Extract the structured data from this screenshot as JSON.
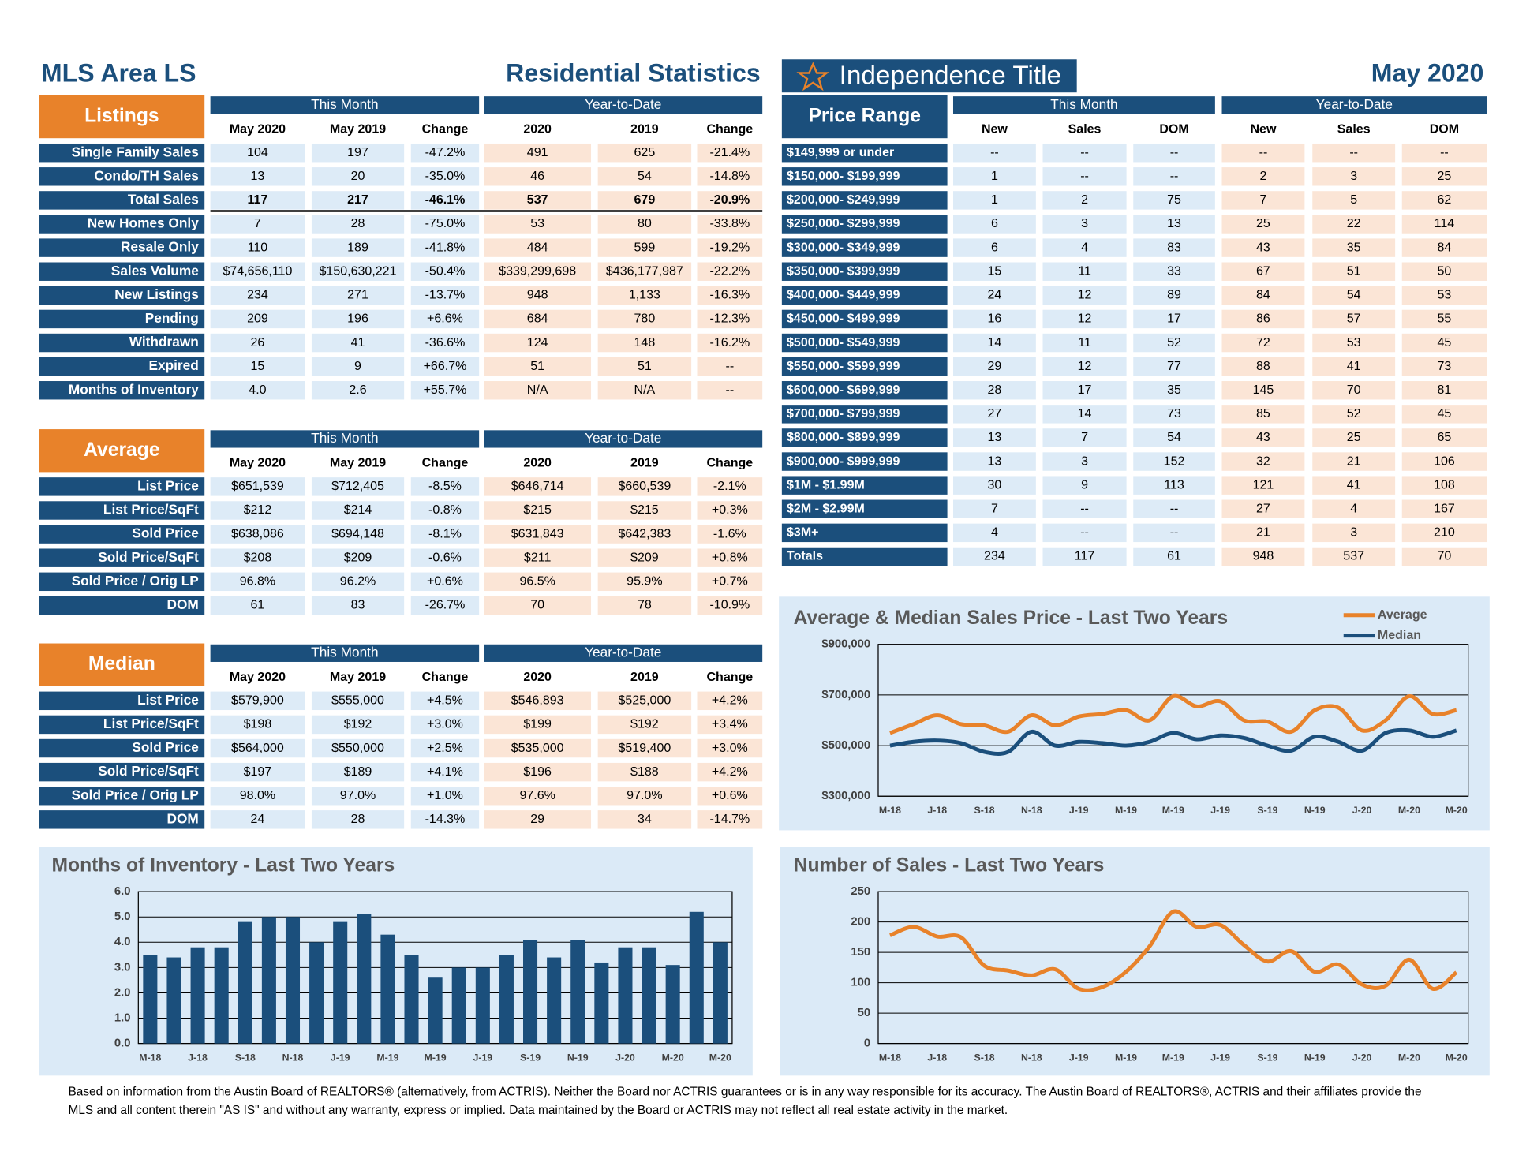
{
  "header": {
    "area": "MLS Area LS",
    "title": "Residential Statistics",
    "logo": "Independence Title",
    "month": "May 2020"
  },
  "listings": {
    "label": "Listings",
    "groups": [
      "This Month",
      "Year-to-Date"
    ],
    "columns": [
      "May 2020",
      "May 2019",
      "Change",
      "2020",
      "2019",
      "Change"
    ],
    "rows": [
      {
        "label": "Single Family Sales",
        "cells": [
          "104",
          "197",
          "-47.2%",
          "491",
          "625",
          "-21.4%"
        ]
      },
      {
        "label": "Condo/TH Sales",
        "cells": [
          "13",
          "20",
          "-35.0%",
          "46",
          "54",
          "-14.8%"
        ]
      },
      {
        "label": "Total Sales",
        "cells": [
          "117",
          "217",
          "-46.1%",
          "537",
          "679",
          "-20.9%"
        ]
      },
      {
        "label": "New Homes Only",
        "cells": [
          "7",
          "28",
          "-75.0%",
          "53",
          "80",
          "-33.8%"
        ]
      },
      {
        "label": "Resale Only",
        "cells": [
          "110",
          "189",
          "-41.8%",
          "484",
          "599",
          "-19.2%"
        ]
      },
      {
        "label": "Sales Volume",
        "cells": [
          "$74,656,110",
          "$150,630,221",
          "-50.4%",
          "$339,299,698",
          "$436,177,987",
          "-22.2%"
        ]
      },
      {
        "label": "New Listings",
        "cells": [
          "234",
          "271",
          "-13.7%",
          "948",
          "1,133",
          "-16.3%"
        ]
      },
      {
        "label": "Pending",
        "cells": [
          "209",
          "196",
          "+6.6%",
          "684",
          "780",
          "-12.3%"
        ]
      },
      {
        "label": "Withdrawn",
        "cells": [
          "26",
          "41",
          "-36.6%",
          "124",
          "148",
          "-16.2%"
        ]
      },
      {
        "label": "Expired",
        "cells": [
          "15",
          "9",
          "+66.7%",
          "51",
          "51",
          "--"
        ]
      },
      {
        "label": "Months of Inventory",
        "cells": [
          "4.0",
          "2.6",
          "+55.7%",
          "N/A",
          "N/A",
          "--"
        ]
      }
    ]
  },
  "average": {
    "label": "Average",
    "groups": [
      "This Month",
      "Year-to-Date"
    ],
    "columns": [
      "May 2020",
      "May 2019",
      "Change",
      "2020",
      "2019",
      "Change"
    ],
    "rows": [
      {
        "label": "List Price",
        "cells": [
          "$651,539",
          "$712,405",
          "-8.5%",
          "$646,714",
          "$660,539",
          "-2.1%"
        ]
      },
      {
        "label": "List Price/SqFt",
        "cells": [
          "$212",
          "$214",
          "-0.8%",
          "$215",
          "$215",
          "+0.3%"
        ]
      },
      {
        "label": "Sold Price",
        "cells": [
          "$638,086",
          "$694,148",
          "-8.1%",
          "$631,843",
          "$642,383",
          "-1.6%"
        ]
      },
      {
        "label": "Sold Price/SqFt",
        "cells": [
          "$208",
          "$209",
          "-0.6%",
          "$211",
          "$209",
          "+0.8%"
        ]
      },
      {
        "label": "Sold Price / Orig LP",
        "cells": [
          "96.8%",
          "96.2%",
          "+0.6%",
          "96.5%",
          "95.9%",
          "+0.7%"
        ]
      },
      {
        "label": "DOM",
        "cells": [
          "61",
          "83",
          "-26.7%",
          "70",
          "78",
          "-10.9%"
        ]
      }
    ]
  },
  "median": {
    "label": "Median",
    "groups": [
      "This Month",
      "Year-to-Date"
    ],
    "columns": [
      "May 2020",
      "May 2019",
      "Change",
      "2020",
      "2019",
      "Change"
    ],
    "rows": [
      {
        "label": "List Price",
        "cells": [
          "$579,900",
          "$555,000",
          "+4.5%",
          "$546,893",
          "$525,000",
          "+4.2%"
        ]
      },
      {
        "label": "List Price/SqFt",
        "cells": [
          "$198",
          "$192",
          "+3.0%",
          "$199",
          "$192",
          "+3.4%"
        ]
      },
      {
        "label": "Sold Price",
        "cells": [
          "$564,000",
          "$550,000",
          "+2.5%",
          "$535,000",
          "$519,400",
          "+3.0%"
        ]
      },
      {
        "label": "Sold Price/SqFt",
        "cells": [
          "$197",
          "$189",
          "+4.1%",
          "$196",
          "$188",
          "+4.2%"
        ]
      },
      {
        "label": "Sold Price / Orig LP",
        "cells": [
          "98.0%",
          "97.0%",
          "+1.0%",
          "97.6%",
          "97.0%",
          "+0.6%"
        ]
      },
      {
        "label": "DOM",
        "cells": [
          "24",
          "28",
          "-14.3%",
          "29",
          "34",
          "-14.7%"
        ]
      }
    ]
  },
  "price_range": {
    "label": "Price Range",
    "groups": [
      "This Month",
      "Year-to-Date"
    ],
    "columns": [
      "New",
      "Sales",
      "DOM",
      "New",
      "Sales",
      "DOM"
    ],
    "rows": [
      {
        "label": "$149,999 or under",
        "cells": [
          "--",
          "--",
          "--",
          "--",
          "--",
          "--"
        ]
      },
      {
        "label": "$150,000- $199,999",
        "cells": [
          "1",
          "--",
          "--",
          "2",
          "3",
          "25"
        ]
      },
      {
        "label": "$200,000- $249,999",
        "cells": [
          "1",
          "2",
          "75",
          "7",
          "5",
          "62"
        ]
      },
      {
        "label": "$250,000- $299,999",
        "cells": [
          "6",
          "3",
          "13",
          "25",
          "22",
          "114"
        ]
      },
      {
        "label": "$300,000- $349,999",
        "cells": [
          "6",
          "4",
          "83",
          "43",
          "35",
          "84"
        ]
      },
      {
        "label": "$350,000- $399,999",
        "cells": [
          "15",
          "11",
          "33",
          "67",
          "51",
          "50"
        ]
      },
      {
        "label": "$400,000- $449,999",
        "cells": [
          "24",
          "12",
          "89",
          "84",
          "54",
          "53"
        ]
      },
      {
        "label": "$450,000- $499,999",
        "cells": [
          "16",
          "12",
          "17",
          "86",
          "57",
          "55"
        ]
      },
      {
        "label": "$500,000- $549,999",
        "cells": [
          "14",
          "11",
          "52",
          "72",
          "53",
          "45"
        ]
      },
      {
        "label": "$550,000- $599,999",
        "cells": [
          "29",
          "12",
          "77",
          "88",
          "41",
          "73"
        ]
      },
      {
        "label": "$600,000- $699,999",
        "cells": [
          "28",
          "17",
          "35",
          "145",
          "70",
          "81"
        ]
      },
      {
        "label": "$700,000- $799,999",
        "cells": [
          "27",
          "14",
          "73",
          "85",
          "52",
          "45"
        ]
      },
      {
        "label": "$800,000- $899,999",
        "cells": [
          "13",
          "7",
          "54",
          "43",
          "25",
          "65"
        ]
      },
      {
        "label": "$900,000- $999,999",
        "cells": [
          "13",
          "3",
          "152",
          "32",
          "21",
          "106"
        ]
      },
      {
        "label": "$1M - $1.99M",
        "cells": [
          "30",
          "9",
          "113",
          "121",
          "41",
          "108"
        ]
      },
      {
        "label": "$2M - $2.99M",
        "cells": [
          "7",
          "--",
          "--",
          "27",
          "4",
          "167"
        ]
      },
      {
        "label": "$3M+",
        "cells": [
          "4",
          "--",
          "--",
          "21",
          "3",
          "210"
        ]
      },
      {
        "label": "Totals",
        "cells": [
          "234",
          "117",
          "61",
          "948",
          "537",
          "70"
        ]
      }
    ]
  },
  "chart_data": [
    {
      "type": "line",
      "title": "Average & Median Sales Price - Last Two Years",
      "categories": [
        "M-18",
        null,
        "J-18",
        null,
        "S-18",
        null,
        "N-18",
        null,
        "J-19",
        null,
        "M-19",
        null,
        "M-19",
        null,
        "J-19",
        null,
        "S-19",
        null,
        "N-19",
        null,
        "J-20",
        null,
        "M-20",
        null,
        "M-20"
      ],
      "series": [
        {
          "name": "Average",
          "color": "#e8822a",
          "values": [
            550000,
            585000,
            620000,
            585000,
            580000,
            555000,
            620000,
            580000,
            615000,
            625000,
            640000,
            600000,
            695000,
            655000,
            675000,
            600000,
            595000,
            555000,
            640000,
            650000,
            560000,
            600000,
            695000,
            625000,
            640000
          ]
        },
        {
          "name": "Median",
          "color": "#1b4f7c",
          "values": [
            500000,
            515000,
            520000,
            510000,
            475000,
            475000,
            555000,
            500000,
            515000,
            510000,
            500000,
            515000,
            550000,
            525000,
            540000,
            530000,
            500000,
            480000,
            535000,
            515000,
            480000,
            550000,
            560000,
            535000,
            560000
          ]
        }
      ],
      "ylim": [
        300000,
        900000
      ],
      "yticks": [
        {
          "value": 300000,
          "label": "$300,000"
        },
        {
          "value": 500000,
          "label": "$500,000"
        },
        {
          "value": 700000,
          "label": "$700,000"
        },
        {
          "value": 900000,
          "label": "$900,000"
        }
      ],
      "grid": true,
      "legend": "top-right"
    },
    {
      "type": "bar",
      "title": "Months of Inventory - Last Two Years",
      "categories": [
        "M-18",
        null,
        "J-18",
        null,
        "S-18",
        null,
        "N-18",
        null,
        "J-19",
        null,
        "M-19",
        null,
        "M-19",
        null,
        "J-19",
        null,
        "S-19",
        null,
        "N-19",
        null,
        "J-20",
        null,
        "M-20",
        null,
        "M-20"
      ],
      "values": [
        3.5,
        3.4,
        3.8,
        3.8,
        4.8,
        5.0,
        5.0,
        4.0,
        4.8,
        5.1,
        4.3,
        3.5,
        2.6,
        3.0,
        3.0,
        3.5,
        4.1,
        3.4,
        4.1,
        3.2,
        3.8,
        3.8,
        3.1,
        5.2,
        4.0
      ],
      "color": "#1b4f7c",
      "ylim": [
        0,
        6
      ],
      "yticks": [
        {
          "value": 0,
          "label": "0.0"
        },
        {
          "value": 1,
          "label": "1.0"
        },
        {
          "value": 2,
          "label": "2.0"
        },
        {
          "value": 3,
          "label": "3.0"
        },
        {
          "value": 4,
          "label": "4.0"
        },
        {
          "value": 5,
          "label": "5.0"
        },
        {
          "value": 6,
          "label": "6.0"
        }
      ],
      "grid": true
    },
    {
      "type": "line",
      "title": "Number of Sales - Last Two Years",
      "categories": [
        "M-18",
        null,
        "J-18",
        null,
        "S-18",
        null,
        "N-18",
        null,
        "J-19",
        null,
        "M-19",
        null,
        "M-19",
        null,
        "J-19",
        null,
        "S-19",
        null,
        "N-19",
        null,
        "J-20",
        null,
        "M-20",
        null,
        "M-20"
      ],
      "series": [
        {
          "color": "#e8822a",
          "values": [
            178,
            192,
            176,
            175,
            128,
            120,
            112,
            122,
            90,
            93,
            118,
            160,
            217,
            192,
            195,
            162,
            135,
            152,
            118,
            130,
            97,
            95,
            138,
            90,
            117
          ]
        }
      ],
      "ylim": [
        0,
        250
      ],
      "yticks": [
        0,
        50,
        100,
        150,
        200,
        250
      ],
      "grid": true
    }
  ],
  "footer": {
    "lines": [
      "Based on information from the Austin Board of REALTORS® (alternatively, from ACTRIS). Neither the Board nor ACTRIS guarantees or is in any way responsible for its accuracy. The Austin Board of REALTORS®, ACTRIS and their affiliates provide the",
      "MLS and all content therein \"AS IS\" and without any warranty, express or implied. Data maintained by the Board or ACTRIS may not reflect all real estate activity in the market."
    ]
  }
}
